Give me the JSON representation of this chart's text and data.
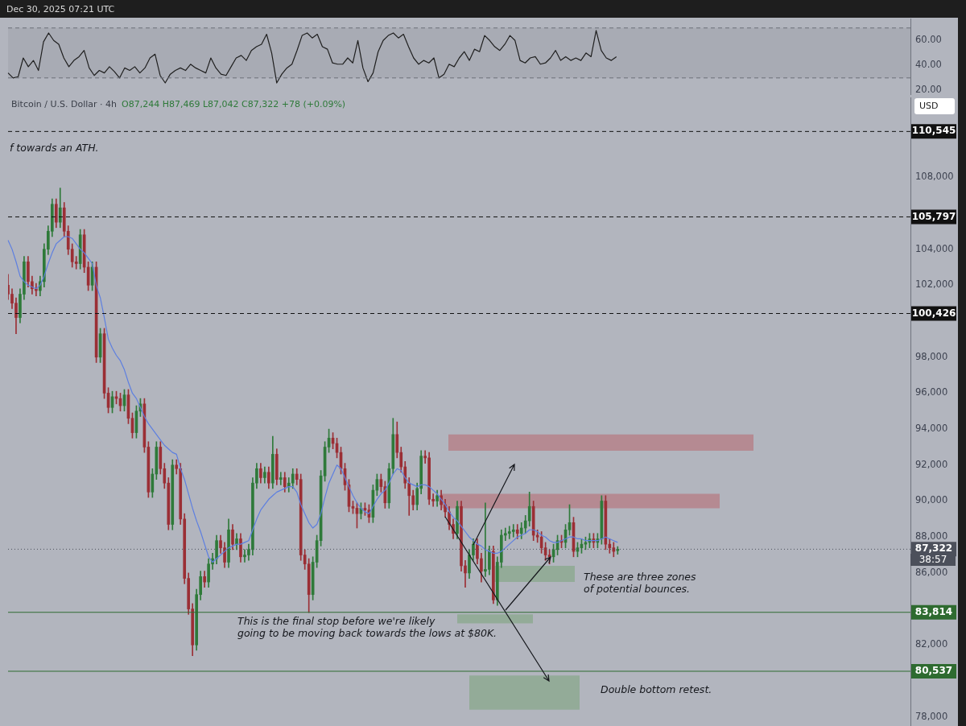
{
  "chart_data": [
    {
      "type": "line",
      "categories": [
        null,
        null,
        null,
        null,
        null,
        null,
        null,
        null,
        null,
        null,
        null,
        null,
        null,
        null,
        null,
        null,
        null,
        null,
        null,
        null,
        null,
        null,
        null,
        null,
        null,
        null,
        null,
        null,
        null,
        null,
        null,
        null,
        null,
        null,
        null,
        null,
        null,
        null,
        null,
        null,
        null,
        null,
        null,
        null,
        null,
        null,
        null,
        null,
        null,
        null,
        null,
        null,
        null,
        null,
        null,
        null,
        null,
        null,
        null,
        null,
        null,
        null,
        null,
        null,
        null,
        null,
        null,
        null,
        null,
        null,
        null,
        null,
        null,
        null,
        null,
        null,
        null,
        null,
        null,
        null,
        null,
        null,
        null,
        null,
        null,
        null,
        null,
        null,
        null,
        null,
        null,
        null,
        null,
        null,
        null,
        null,
        null,
        null,
        null,
        null,
        null,
        null,
        null,
        null,
        null,
        null,
        null,
        null,
        null,
        null,
        null,
        null,
        null,
        null,
        null,
        null,
        null,
        null,
        null,
        null,
        null,
        null,
        null,
        null,
        null,
        null,
        null,
        null,
        null,
        null,
        null,
        null,
        null,
        null,
        null,
        null,
        null,
        null,
        null,
        null,
        null,
        null,
        null,
        null,
        null,
        null,
        null,
        null,
        null,
        null,
        null,
        null,
        null,
        null,
        null,
        null,
        null,
        null,
        null,
        null,
        null,
        null,
        null,
        null,
        null,
        null,
        null,
        null,
        null,
        null,
        null,
        null,
        null,
        null,
        null,
        null,
        null,
        null,
        null
      ],
      "values": [
        34,
        30,
        31,
        46,
        39,
        44,
        36,
        59,
        66,
        60,
        57,
        46,
        39,
        44,
        47,
        52,
        38,
        32,
        36,
        34,
        39,
        35,
        30,
        38,
        36,
        39,
        34,
        38,
        46,
        49,
        32,
        26,
        33,
        36,
        38,
        36,
        41,
        38,
        36,
        34,
        46,
        38,
        33,
        32,
        39,
        46,
        48,
        44,
        52,
        55,
        57,
        65,
        50,
        26,
        33,
        38,
        41,
        52,
        64,
        66,
        62,
        65,
        55,
        53,
        42,
        41,
        41,
        46,
        42,
        60,
        38,
        27,
        34,
        51,
        60,
        64,
        66,
        62,
        65,
        55,
        46,
        41,
        44,
        42,
        46,
        30,
        33,
        41,
        39,
        46,
        51,
        44,
        53,
        51,
        64,
        60,
        55,
        52,
        57,
        64,
        60,
        44,
        42,
        46,
        47,
        41,
        42,
        46,
        52,
        44,
        47,
        44,
        46,
        44,
        50,
        47,
        68,
        52,
        46,
        44,
        47,
        null,
        null,
        null,
        null,
        null,
        null,
        null,
        null,
        null,
        null,
        null,
        null,
        null,
        null,
        null,
        null,
        null,
        null,
        null,
        null,
        null,
        null,
        null,
        null,
        null,
        null,
        null,
        null,
        null,
        null,
        null,
        null,
        null,
        null,
        null,
        null,
        null,
        null,
        null,
        null,
        null,
        null,
        null,
        null,
        null,
        null,
        null,
        null,
        null,
        null,
        null,
        null,
        null,
        null,
        null,
        null,
        null,
        null
      ],
      "color": "#1f1f1f",
      "ylim": [
        15,
        77
      ],
      "yticks": [
        {
          "value": 20,
          "label": "20.00"
        },
        {
          "value": 40,
          "label": "40.00"
        },
        {
          "value": 60,
          "label": "60.00"
        }
      ],
      "bands": [
        {
          "axis": "y",
          "from": 30,
          "to": 70,
          "color": "#a8abb4"
        }
      ],
      "ref_lines": [
        {
          "axis": "y",
          "value": 30,
          "line_style": "dashed",
          "color": "#6b6f7a"
        },
        {
          "axis": "y",
          "value": 70,
          "line_style": "dashed",
          "color": "#6b6f7a"
        }
      ],
      "tick_labels": "y"
    },
    {
      "type": "candlestick",
      "title": "Bitcoin / U.S. Dollar · 4h",
      "subtitle": "O87,244 H87,469 L87,042 C87,322 +78 (+0.09%)",
      "categories": [
        null,
        null,
        null,
        null,
        null,
        null,
        null,
        null,
        null,
        null,
        null,
        null,
        null,
        null,
        null,
        null,
        null,
        null,
        null,
        null,
        null,
        null,
        null,
        null,
        null,
        null,
        null,
        null,
        null,
        null,
        null,
        null,
        null,
        null,
        null,
        null,
        null,
        null,
        null,
        null,
        null,
        null,
        null,
        null,
        null,
        null,
        null,
        null,
        null,
        null,
        null,
        null,
        null,
        null,
        null,
        null,
        null,
        null,
        null,
        null,
        null,
        null,
        null,
        null,
        null,
        null,
        null,
        null,
        null,
        null,
        null,
        null,
        null,
        null,
        null,
        null,
        null,
        null,
        null,
        null,
        null,
        null,
        null,
        null,
        null,
        null,
        null,
        null,
        null,
        null,
        null,
        null,
        null,
        null,
        null,
        null,
        null,
        null,
        null,
        null,
        null,
        null,
        null,
        null,
        null,
        null,
        null,
        null,
        null,
        null,
        null,
        null,
        null,
        null,
        null,
        null,
        null,
        null,
        null,
        null,
        null,
        null,
        null,
        null,
        null,
        null,
        null,
        null,
        null,
        null,
        null,
        null,
        null,
        null,
        null,
        null,
        null,
        null,
        null,
        null,
        null,
        null,
        null,
        null,
        null,
        null,
        null,
        null,
        null,
        null,
        null,
        null,
        null,
        null,
        null,
        null,
        null,
        null,
        null,
        null,
        null,
        null,
        null,
        null,
        null,
        null,
        null,
        null,
        null,
        null,
        null,
        null,
        null,
        null,
        null,
        null,
        null,
        null,
        null,
        null,
        null,
        null,
        null,
        null,
        null,
        null,
        null,
        null,
        null,
        null,
        null,
        null,
        null,
        null,
        null,
        null,
        null,
        null,
        null,
        null,
        null,
        null,
        null,
        null,
        null,
        null,
        null,
        null,
        null,
        null,
        null,
        null,
        null,
        null,
        null,
        null,
        null,
        null,
        null,
        null,
        null,
        null,
        null,
        null,
        null,
        null
      ],
      "ohlc": [
        [
          102000,
          102600,
          101200,
          101500
        ],
        [
          101500,
          101800,
          100700,
          101000
        ],
        [
          101000,
          101300,
          99300,
          100200
        ],
        [
          100200,
          101800,
          99900,
          101500
        ],
        [
          101500,
          103600,
          101200,
          103300
        ],
        [
          103300,
          103600,
          101900,
          102200
        ],
        [
          102200,
          102500,
          101500,
          101800
        ],
        [
          101800,
          102100,
          101400,
          101700
        ],
        [
          101700,
          102500,
          101400,
          102200
        ],
        [
          102200,
          104300,
          101900,
          104000
        ],
        [
          104000,
          105300,
          103700,
          105000
        ],
        [
          105000,
          106800,
          104700,
          106500
        ],
        [
          106500,
          106800,
          105200,
          105500
        ],
        [
          105500,
          107400,
          105200,
          106300
        ],
        [
          106300,
          106600,
          104700,
          105000
        ],
        [
          105000,
          105300,
          103700,
          104000
        ],
        [
          104000,
          104300,
          103000,
          103300
        ],
        [
          103300,
          103600,
          102900,
          103200
        ],
        [
          103200,
          105100,
          102900,
          104800
        ],
        [
          104800,
          105100,
          102700,
          103000
        ],
        [
          103000,
          103300,
          101700,
          102000
        ],
        [
          102000,
          103300,
          101700,
          103000
        ],
        [
          103000,
          103300,
          97700,
          98000
        ],
        [
          98000,
          99600,
          97700,
          99300
        ],
        [
          99300,
          99600,
          95700,
          96000
        ],
        [
          96000,
          96300,
          94900,
          95200
        ],
        [
          95200,
          96100,
          94900,
          95800
        ],
        [
          95800,
          96100,
          95400,
          95700
        ],
        [
          95700,
          96000,
          95000,
          95300
        ],
        [
          95300,
          96200,
          95000,
          95900
        ],
        [
          95900,
          96200,
          94300,
          94600
        ],
        [
          94600,
          94900,
          93500,
          93800
        ],
        [
          93800,
          95300,
          93500,
          95000
        ],
        [
          95000,
          95700,
          94700,
          95400
        ],
        [
          95400,
          95700,
          92700,
          93000
        ],
        [
          93000,
          93300,
          90200,
          90500
        ],
        [
          90500,
          91800,
          90200,
          91500
        ],
        [
          91500,
          93300,
          91200,
          93000
        ],
        [
          93000,
          93300,
          91500,
          91800
        ],
        [
          91800,
          92100,
          90700,
          91000
        ],
        [
          91000,
          91300,
          88400,
          88700
        ],
        [
          88700,
          92300,
          88400,
          92000
        ],
        [
          92000,
          92300,
          91500,
          91800
        ],
        [
          91800,
          92100,
          88700,
          89000
        ],
        [
          89000,
          89300,
          85400,
          85700
        ],
        [
          85700,
          86000,
          83700,
          84000
        ],
        [
          84000,
          84300,
          81400,
          82000
        ],
        [
          82000,
          85100,
          81700,
          84800
        ],
        [
          84800,
          86100,
          84500,
          85800
        ],
        [
          85800,
          86100,
          85200,
          85500
        ],
        [
          85500,
          86800,
          85200,
          86500
        ],
        [
          86500,
          87100,
          86200,
          86800
        ],
        [
          86800,
          88100,
          86500,
          87800
        ],
        [
          87800,
          88100,
          87100,
          87400
        ],
        [
          87400,
          87700,
          86300,
          86600
        ],
        [
          86600,
          89000,
          86300,
          88400
        ],
        [
          88400,
          88700,
          87300,
          87600
        ],
        [
          87600,
          88200,
          87300,
          87900
        ],
        [
          87900,
          88200,
          86600,
          86900
        ],
        [
          86900,
          87300,
          86600,
          87000
        ],
        [
          87000,
          87600,
          86700,
          87300
        ],
        [
          87300,
          91300,
          87000,
          91000
        ],
        [
          91000,
          92100,
          90700,
          91800
        ],
        [
          91800,
          92100,
          91000,
          91300
        ],
        [
          91300,
          91900,
          91000,
          91600
        ],
        [
          91600,
          91900,
          90700,
          91000
        ],
        [
          91000,
          93600,
          90700,
          92600
        ],
        [
          92600,
          92900,
          90900,
          91200
        ],
        [
          91200,
          91600,
          90900,
          91300
        ],
        [
          91300,
          91600,
          90500,
          90800
        ],
        [
          90800,
          91300,
          90500,
          91000
        ],
        [
          91000,
          91800,
          90700,
          91500
        ],
        [
          91500,
          91800,
          90900,
          91200
        ],
        [
          91200,
          91500,
          86700,
          87000
        ],
        [
          87000,
          87300,
          86200,
          86500
        ],
        [
          86500,
          86800,
          83800,
          84800
        ],
        [
          84800,
          86900,
          84500,
          86600
        ],
        [
          86600,
          88100,
          86300,
          87800
        ],
        [
          87800,
          91700,
          87500,
          91400
        ],
        [
          91400,
          93300,
          91100,
          93000
        ],
        [
          93000,
          94000,
          92700,
          93500
        ],
        [
          93500,
          93800,
          92900,
          93200
        ],
        [
          93200,
          93500,
          92400,
          92700
        ],
        [
          92700,
          93000,
          91500,
          91800
        ],
        [
          91800,
          92100,
          90600,
          90900
        ],
        [
          90900,
          91200,
          89400,
          89700
        ],
        [
          89700,
          90000,
          89300,
          89600
        ],
        [
          89600,
          89900,
          88500,
          89300
        ],
        [
          89300,
          89900,
          89000,
          89600
        ],
        [
          89600,
          89900,
          89200,
          89500
        ],
        [
          89500,
          89800,
          88800,
          89100
        ],
        [
          89100,
          90900,
          88800,
          90600
        ],
        [
          90600,
          91500,
          90300,
          91200
        ],
        [
          91200,
          91500,
          90500,
          90800
        ],
        [
          90800,
          91100,
          89600,
          89900
        ],
        [
          89900,
          92100,
          89600,
          91800
        ],
        [
          91800,
          94600,
          91500,
          93700
        ],
        [
          93700,
          94400,
          92400,
          92700
        ],
        [
          92700,
          93000,
          91600,
          91900
        ],
        [
          91900,
          92200,
          90700,
          91000
        ],
        [
          91000,
          91300,
          89200,
          90300
        ],
        [
          90300,
          90600,
          89500,
          89800
        ],
        [
          89800,
          91000,
          89500,
          90700
        ],
        [
          90700,
          92800,
          90400,
          92500
        ],
        [
          92500,
          92800,
          92100,
          92400
        ],
        [
          92400,
          92700,
          89800,
          90100
        ],
        [
          90100,
          90400,
          89700,
          90000
        ],
        [
          90000,
          90600,
          89700,
          90300
        ],
        [
          90300,
          90600,
          89500,
          89800
        ],
        [
          89800,
          90100,
          89100,
          89400
        ],
        [
          89400,
          89700,
          88400,
          88700
        ],
        [
          88700,
          89000,
          87900,
          88200
        ],
        [
          88200,
          90000,
          87900,
          89700
        ],
        [
          89700,
          90000,
          86100,
          86400
        ],
        [
          86400,
          86700,
          85200,
          86000
        ],
        [
          86000,
          87300,
          85700,
          87000
        ],
        [
          87000,
          87900,
          86700,
          87600
        ],
        [
          87600,
          87900,
          86500,
          86800
        ],
        [
          86800,
          87100,
          85500,
          86100
        ],
        [
          86100,
          89900,
          85800,
          86200
        ],
        [
          86200,
          87500,
          85900,
          87200
        ],
        [
          87200,
          87500,
          84300,
          84500
        ],
        [
          84500,
          86900,
          84200,
          86600
        ],
        [
          86600,
          88400,
          86300,
          88100
        ],
        [
          88100,
          88500,
          87800,
          88200
        ],
        [
          88200,
          88600,
          87900,
          88300
        ],
        [
          88300,
          88700,
          88000,
          88400
        ],
        [
          88400,
          88700,
          87900,
          88200
        ],
        [
          88200,
          88800,
          87900,
          88500
        ],
        [
          88500,
          89200,
          88200,
          88900
        ],
        [
          88900,
          90500,
          88600,
          89700
        ],
        [
          89700,
          90000,
          87800,
          88100
        ],
        [
          88100,
          88400,
          87700,
          88000
        ],
        [
          88000,
          88300,
          87100,
          87400
        ],
        [
          87400,
          87700,
          86700,
          87000
        ],
        [
          87000,
          87300,
          86500,
          86900
        ],
        [
          86900,
          87600,
          86600,
          87300
        ],
        [
          87300,
          88100,
          87000,
          87800
        ],
        [
          87800,
          88100,
          87400,
          87700
        ],
        [
          87700,
          88700,
          87400,
          88400
        ],
        [
          88400,
          89800,
          88100,
          88800
        ],
        [
          88800,
          89100,
          86900,
          87200
        ],
        [
          87200,
          87700,
          86900,
          87400
        ],
        [
          87400,
          87900,
          87100,
          87600
        ],
        [
          87600,
          88000,
          87300,
          87700
        ],
        [
          87700,
          88200,
          87400,
          87900
        ],
        [
          87900,
          88200,
          87400,
          87700
        ],
        [
          87700,
          88200,
          87400,
          87900
        ],
        [
          87900,
          90300,
          87600,
          90000
        ],
        [
          90000,
          90300,
          87300,
          87600
        ],
        [
          87600,
          87900,
          87100,
          87400
        ],
        [
          87400,
          87700,
          86900,
          87200
        ],
        [
          87244,
          87469,
          87042,
          87322
        ],
        null,
        null,
        null,
        null,
        null,
        null,
        null,
        null,
        null,
        null,
        null,
        null,
        null,
        null,
        null,
        null,
        null,
        null,
        null,
        null,
        null,
        null,
        null,
        null,
        null,
        null,
        null,
        null,
        null,
        null,
        null,
        null,
        null,
        null,
        null,
        null,
        null,
        null,
        null,
        null,
        null,
        null,
        null,
        null,
        null,
        null,
        null,
        null,
        null,
        null,
        null,
        null,
        null,
        null,
        null,
        null,
        null,
        null,
        null,
        null,
        null,
        null,
        null,
        null,
        null,
        null,
        null,
        null,
        null,
        null,
        null,
        null,
        null
      ],
      "series": [
        {
          "type": "line",
          "color": "#5d7fe0",
          "values": [
            104500,
            104000,
            103300,
            102500,
            102200,
            102000,
            101900,
            101800,
            102000,
            102500,
            103200,
            103800,
            104300,
            104500,
            104700,
            104700,
            104600,
            104300,
            104000,
            103800,
            103500,
            103200,
            102000,
            101300,
            100200,
            99000,
            98500,
            98100,
            97800,
            97300,
            96600,
            96000,
            95700,
            95200,
            94700,
            94300,
            94000,
            93700,
            93400,
            93100,
            92900,
            92700,
            92600,
            91800,
            91200,
            90400,
            89600,
            88900,
            88300,
            87600,
            86900,
            86600,
            86800,
            87000,
            87200,
            87400,
            87500,
            87600,
            87600,
            87700,
            87800,
            88400,
            89000,
            89500,
            89800,
            90100,
            90300,
            90500,
            90600,
            90700,
            90800,
            90800,
            90500,
            89800,
            89300,
            88800,
            88500,
            88700,
            89300,
            90200,
            91000,
            91500,
            92000,
            91800,
            91300,
            90800,
            90300,
            89900,
            89600,
            89400,
            89300,
            89700,
            90100,
            90400,
            90600,
            91000,
            91500,
            91800,
            91700,
            91300,
            91000,
            90900,
            90800,
            90900,
            90900,
            90800,
            90600,
            90400,
            90100,
            89800,
            89400,
            89100,
            88900,
            88600,
            88300,
            88000,
            87800,
            87600,
            87500,
            87300,
            87200,
            87100,
            87100,
            87200,
            87400,
            87600,
            87800,
            88000,
            88100,
            88200,
            88400,
            88400,
            88300,
            88100,
            88000,
            87800,
            87700,
            87700,
            87800,
            87900,
            88000,
            88000,
            87900,
            87900,
            87800,
            87800,
            87800,
            87800,
            87900,
            88000,
            87900,
            87800,
            87700,
            null,
            null,
            null,
            null,
            null,
            null,
            null,
            null,
            null,
            null,
            null,
            null,
            null,
            null,
            null,
            null,
            null,
            null,
            null,
            null,
            null,
            null,
            null,
            null,
            null,
            null,
            null,
            null,
            null,
            null,
            null,
            null,
            null,
            null,
            null,
            null,
            null,
            null,
            null,
            null,
            null,
            null,
            null,
            null,
            null,
            null,
            null,
            null,
            null,
            null,
            null,
            null,
            null,
            null,
            null,
            null,
            null,
            null,
            null,
            null,
            null,
            null,
            null,
            null,
            null,
            null,
            null,
            null,
            null,
            null,
            null,
            null,
            null
          ]
        }
      ],
      "ylim": [
        77400,
        112400
      ],
      "yticks": [
        {
          "value": 78000,
          "label": "78,000"
        },
        {
          "value": 82000,
          "label": "82,000"
        },
        {
          "value": 86000,
          "label": "86,000"
        },
        {
          "value": 88000,
          "label": "88,000"
        },
        {
          "value": 90000,
          "label": "90,000"
        },
        {
          "value": 92000,
          "label": "92,000"
        },
        {
          "value": 94000,
          "label": "94,000"
        },
        {
          "value": 96000,
          "label": "96,000"
        },
        {
          "value": 98000,
          "label": "98,000"
        },
        {
          "value": 102000,
          "label": "102,000"
        },
        {
          "value": 104000,
          "label": "104,000"
        },
        {
          "value": 108000,
          "label": "108,000"
        }
      ],
      "ref_lines": [
        {
          "axis": "y",
          "value": 110545,
          "label": "110,545",
          "line_style": "dashed",
          "color": "#111111"
        },
        {
          "axis": "y",
          "value": 105797,
          "label": "105,797",
          "line_style": "dashed",
          "color": "#111111"
        },
        {
          "axis": "y",
          "value": 100426,
          "label": "100,426",
          "line_style": "dashed",
          "color": "#111111"
        },
        {
          "axis": "y",
          "value": 87322,
          "label": "87,322",
          "line_style": "dotted",
          "color": "#4c505b"
        },
        {
          "axis": "y",
          "value": 83814,
          "label": "83,814",
          "line_style": "solid",
          "color": "#2e6b30"
        },
        {
          "axis": "y",
          "value": 80537,
          "label": "80,537",
          "line_style": "solid",
          "color": "#2e6b30"
        }
      ],
      "bands": [
        {
          "axis": "y",
          "from": 92800,
          "to": 93700,
          "color": "#b58a92"
        },
        {
          "axis": "y",
          "from": 89600,
          "to": 90400,
          "color": "#b58a92"
        },
        {
          "axis": "y",
          "from": 85500,
          "to": 86400,
          "color": "#93ab98"
        },
        {
          "axis": "y",
          "from": 83200,
          "to": 83700,
          "color": "#93ab98"
        },
        {
          "axis": "y",
          "from": 78400,
          "to": 80300,
          "color": "#93ab98"
        }
      ],
      "annotations": [
        "Dec 30, 2025 07:21 UTC",
        "f towards an ATH.",
        "This is the final stop before we're likely\ngoing to be moving back towards the lows at $80K.",
        "These are three zones\nof potential bounces.",
        "Double bottom retest.",
        "USD",
        "38:57"
      ],
      "tick_labels": "y"
    }
  ]
}
